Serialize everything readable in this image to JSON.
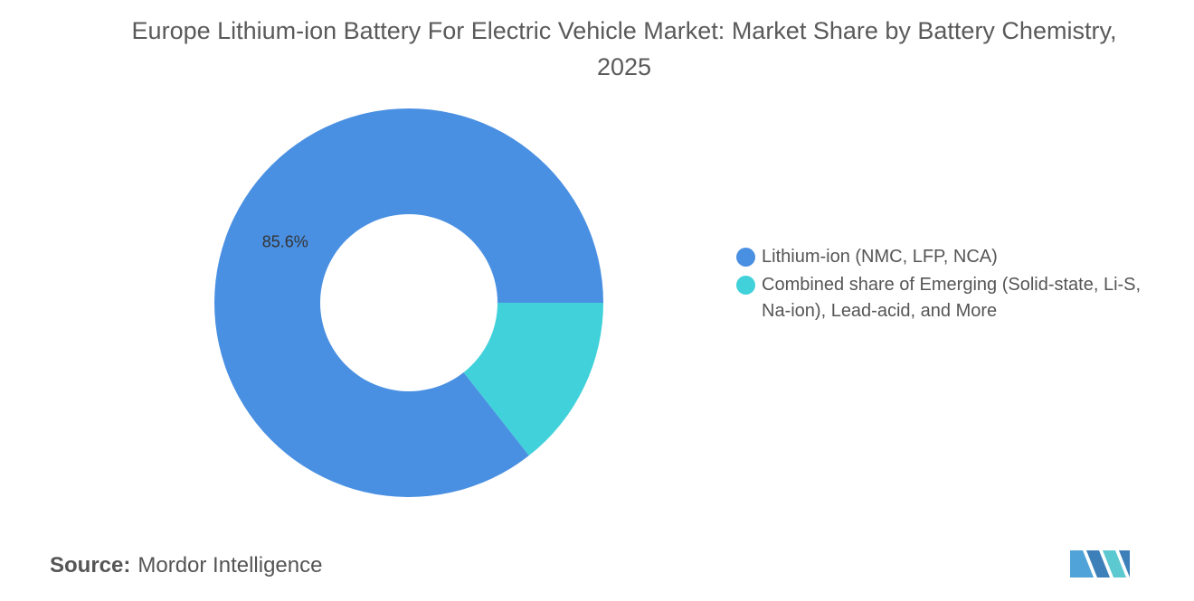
{
  "chart_data": {
    "type": "donut",
    "title": "Europe Lithium-ion Battery For Electric Vehicle Market: Market Share by Battery Chemistry, 2025",
    "categories": [
      "Lithium-ion (NMC, LFP, NCA)",
      "Combined share of Emerging (Solid-state, Li-S, Na-ion), Lead-acid, and More"
    ],
    "values": [
      85.6,
      14.4
    ],
    "value_labels": [
      "85.6%",
      null
    ],
    "colors": [
      "#4a90e2",
      "#41d1da"
    ],
    "legend": "right",
    "source_label": "Source:",
    "source": "Mordor Intelligence"
  }
}
